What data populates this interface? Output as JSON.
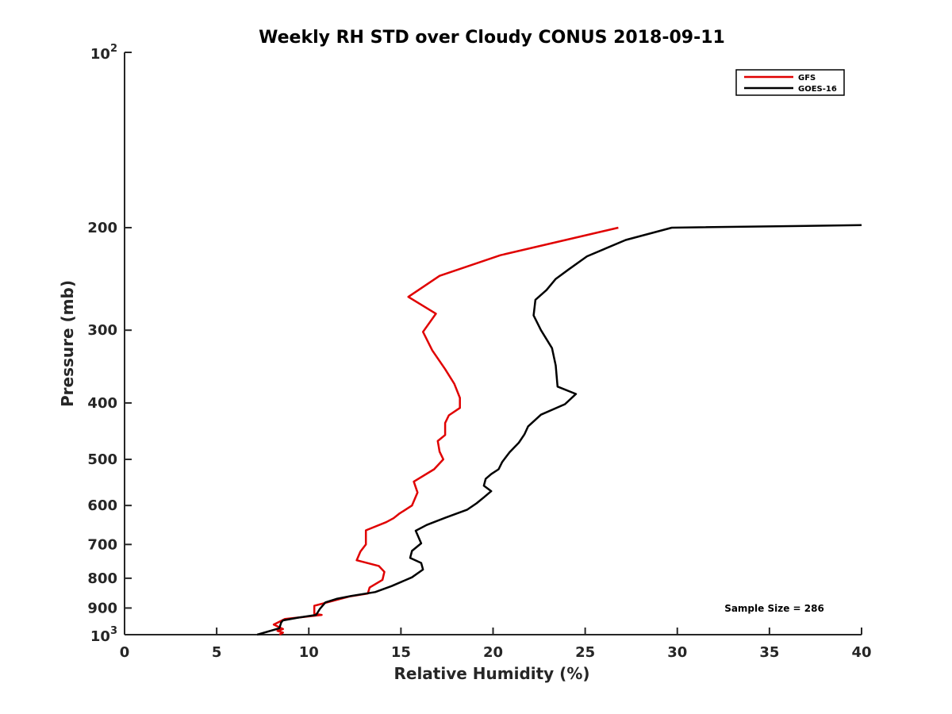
{
  "chart_data": {
    "type": "line",
    "title": "Weekly RH STD over Cloudy CONUS 2018-09-11",
    "xlabel": "Relative Humidity (%)",
    "ylabel": "Pressure (mb)",
    "xlim": [
      0,
      40
    ],
    "ylim": [
      1000,
      100
    ],
    "yscale": "log",
    "y_reversed": true,
    "grid": false,
    "legend_position": "top-right",
    "x_ticks": [
      "0",
      "5",
      "10",
      "15",
      "20",
      "25",
      "30",
      "35",
      "40"
    ],
    "y_ticks": [
      {
        "value": 100,
        "base": "10",
        "exp": "2"
      },
      {
        "value": 200,
        "label": "200"
      },
      {
        "value": 300,
        "label": "300"
      },
      {
        "value": 400,
        "label": "400"
      },
      {
        "value": 500,
        "label": "500"
      },
      {
        "value": 600,
        "label": "600"
      },
      {
        "value": 700,
        "label": "700"
      },
      {
        "value": 800,
        "label": "800"
      },
      {
        "value": 900,
        "label": "900"
      },
      {
        "value": 1000,
        "base": "10",
        "exp": "3"
      }
    ],
    "annotation": "Sample Size = 286",
    "series": [
      {
        "name": "GFS",
        "color": "#e00000",
        "points": [
          [
            26.8,
            200
          ],
          [
            20.4,
            223
          ],
          [
            17.1,
            242
          ],
          [
            15.4,
            263
          ],
          [
            16.9,
            281
          ],
          [
            16.2,
            302
          ],
          [
            16.7,
            325
          ],
          [
            17.4,
            350
          ],
          [
            17.9,
            371
          ],
          [
            18.2,
            392
          ],
          [
            18.2,
            408
          ],
          [
            17.6,
            420
          ],
          [
            17.4,
            433
          ],
          [
            17.4,
            454
          ],
          [
            17.0,
            465
          ],
          [
            17.1,
            485
          ],
          [
            17.3,
            500
          ],
          [
            16.8,
            520
          ],
          [
            15.7,
            546
          ],
          [
            15.9,
            570
          ],
          [
            15.6,
            600
          ],
          [
            14.9,
            620
          ],
          [
            14.6,
            631
          ],
          [
            14.2,
            641
          ],
          [
            13.1,
            662
          ],
          [
            13.1,
            700
          ],
          [
            12.8,
            720
          ],
          [
            12.6,
            745
          ],
          [
            13.8,
            762
          ],
          [
            14.1,
            780
          ],
          [
            14.0,
            805
          ],
          [
            13.3,
            830
          ],
          [
            13.2,
            850
          ],
          [
            12.2,
            860
          ],
          [
            10.3,
            892
          ],
          [
            10.3,
            921
          ],
          [
            10.7,
            925
          ],
          [
            8.7,
            940
          ],
          [
            8.1,
            961
          ],
          [
            8.6,
            978
          ],
          [
            8.3,
            985
          ],
          [
            8.6,
            992
          ],
          [
            8.4,
            1000
          ]
        ]
      },
      {
        "name": "GOES-16",
        "color": "#000000",
        "points": [
          [
            40.0,
            198
          ],
          [
            29.7,
            200
          ],
          [
            27.2,
            210
          ],
          [
            25.1,
            224
          ],
          [
            24.1,
            236
          ],
          [
            23.4,
            245
          ],
          [
            22.9,
            256
          ],
          [
            22.3,
            266
          ],
          [
            22.2,
            283
          ],
          [
            22.6,
            300
          ],
          [
            23.2,
            322
          ],
          [
            23.4,
            345
          ],
          [
            23.5,
            375
          ],
          [
            24.5,
            386
          ],
          [
            23.9,
            402
          ],
          [
            22.6,
            419
          ],
          [
            21.9,
            439
          ],
          [
            21.7,
            453
          ],
          [
            21.4,
            468
          ],
          [
            20.9,
            486
          ],
          [
            20.5,
            505
          ],
          [
            20.3,
            520
          ],
          [
            19.9,
            530
          ],
          [
            19.6,
            540
          ],
          [
            19.5,
            555
          ],
          [
            19.9,
            567
          ],
          [
            19.5,
            581
          ],
          [
            19.1,
            595
          ],
          [
            18.6,
            610
          ],
          [
            18.0,
            620
          ],
          [
            17.4,
            630
          ],
          [
            16.4,
            648
          ],
          [
            15.8,
            663
          ],
          [
            16.1,
            697
          ],
          [
            15.6,
            718
          ],
          [
            15.5,
            738
          ],
          [
            16.1,
            753
          ],
          [
            16.2,
            773
          ],
          [
            15.6,
            797
          ],
          [
            14.5,
            825
          ],
          [
            13.6,
            845
          ],
          [
            12.3,
            858
          ],
          [
            11.5,
            868
          ],
          [
            10.9,
            880
          ],
          [
            10.6,
            903
          ],
          [
            10.4,
            925
          ],
          [
            9.4,
            935
          ],
          [
            8.6,
            945
          ],
          [
            8.5,
            953
          ],
          [
            8.4,
            975
          ],
          [
            7.2,
            1000
          ]
        ]
      }
    ]
  }
}
